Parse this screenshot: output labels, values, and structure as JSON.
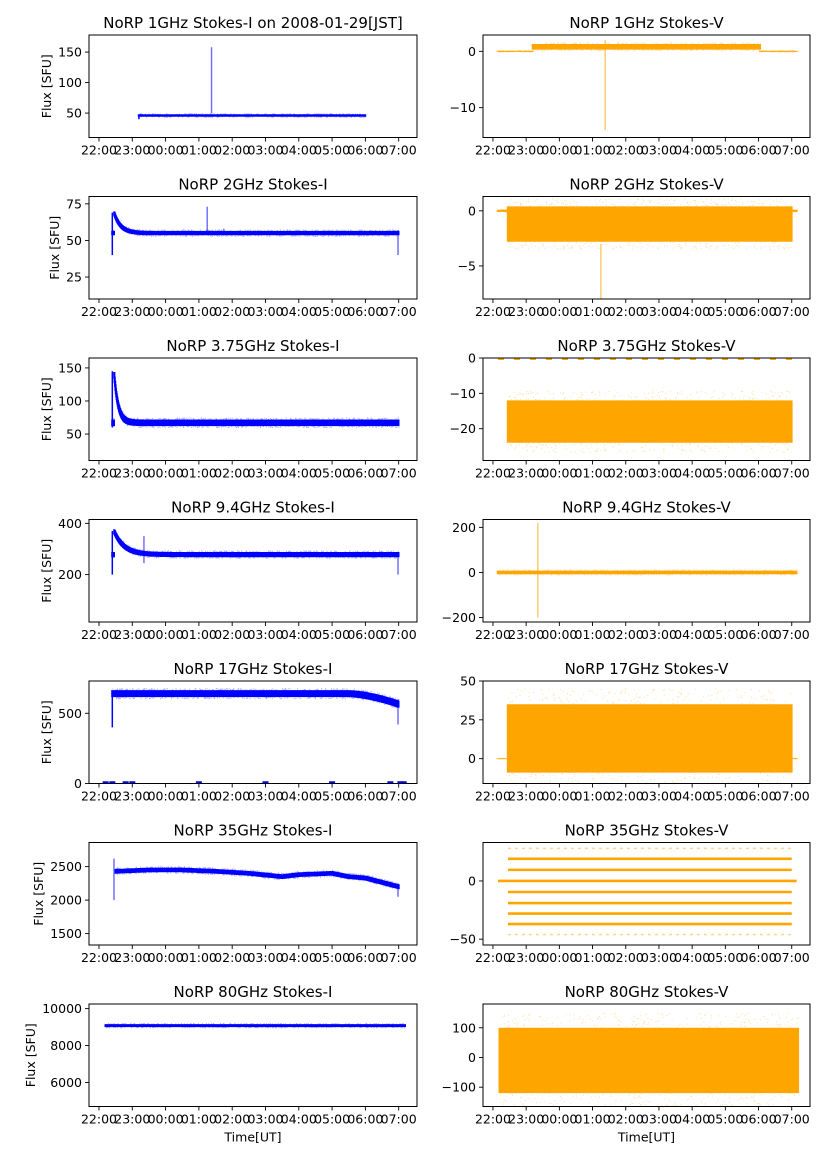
{
  "figure": {
    "x_tick_labels": [
      "22:00",
      "23:00",
      "00:00",
      "01:00",
      "02:00",
      "03:00",
      "04:00",
      "05:00",
      "06:00",
      "07:00"
    ],
    "x_range_hours": [
      21.7,
      31.55
    ],
    "xlabel": "Time[UT]",
    "ylabel": "Flux [SFU]",
    "colors": {
      "stokes_i": "#0000ff",
      "stokes_v": "#ffa500"
    }
  },
  "chart_data": [
    {
      "type": "scatter",
      "panel": "1GHz-I",
      "title": "NoRP 1GHz Stokes-I on 2008-01-29[JST]",
      "ylabel": "Flux [SFU]",
      "ylim": [
        10,
        178
      ],
      "yticks": [
        50,
        100,
        150
      ],
      "color": "#0000ff",
      "segments": [
        {
          "t0": 23.2,
          "t1": 30.0,
          "base": 46,
          "spread": 2
        }
      ],
      "spikes": [
        {
          "t": 25.38,
          "lo": 50,
          "hi": 158
        }
      ],
      "start_rise": {
        "t": 23.2,
        "from": 40,
        "to": 46
      }
    },
    {
      "type": "scatter",
      "panel": "1GHz-V",
      "title": "NoRP 1GHz Stokes-V",
      "ylabel": "",
      "ylim": [
        -15.3,
        2.9
      ],
      "yticks": [
        0,
        -10
      ],
      "color": "#ffa500",
      "segments": [
        {
          "t0": 22.15,
          "t1": 23.2,
          "base": 0,
          "spread": 0.1
        },
        {
          "t0": 23.2,
          "t1": 30.05,
          "base": 0.8,
          "spread": 0.5
        },
        {
          "t0": 30.05,
          "t1": 31.15,
          "base": 0,
          "spread": 0.1
        }
      ],
      "spikes": [
        {
          "t": 25.38,
          "lo": -14,
          "hi": 2
        }
      ]
    },
    {
      "type": "scatter",
      "panel": "2GHz-I",
      "title": "NoRP 2GHz Stokes-I",
      "ylabel": "Flux [SFU]",
      "ylim": [
        10,
        80
      ],
      "yticks": [
        25,
        50,
        75
      ],
      "color": "#0000ff",
      "segments": [
        {
          "t0": 22.4,
          "t1": 31.0,
          "base": 55,
          "spread": 1.5
        }
      ],
      "decay": {
        "t": 22.45,
        "peak": 69,
        "tau": 0.2
      },
      "spikes": [
        {
          "t": 25.25,
          "lo": 55,
          "hi": 73
        },
        {
          "t": 25.75,
          "lo": 55,
          "hi": 58
        },
        {
          "t": 30.98,
          "lo": 40,
          "hi": 57
        }
      ],
      "start_rise": {
        "t": 22.4,
        "from": 40,
        "to": 69
      }
    },
    {
      "type": "scatter",
      "panel": "2GHz-V",
      "title": "NoRP 2GHz Stokes-V",
      "ylabel": "",
      "ylim": [
        -8,
        1.3
      ],
      "yticks": [
        0,
        -5
      ],
      "color": "#ffa500",
      "segments": [
        {
          "t0": 22.15,
          "t1": 22.45,
          "base": 0,
          "spread": 0.1
        },
        {
          "t0": 22.45,
          "t1": 31.0,
          "base": -1.2,
          "spread": 1.6
        },
        {
          "t0": 31.0,
          "t1": 31.15,
          "base": 0,
          "spread": 0.1
        }
      ],
      "spikes": [
        {
          "t": 25.25,
          "lo": -8,
          "hi": -3
        }
      ]
    },
    {
      "type": "scatter",
      "panel": "3.75GHz-I",
      "title": "NoRP 3.75GHz Stokes-I",
      "ylabel": "Flux [SFU]",
      "ylim": [
        10,
        165
      ],
      "yticks": [
        50,
        100,
        150
      ],
      "color": "#0000ff",
      "segments": [
        {
          "t0": 22.4,
          "t1": 31.0,
          "base": 67,
          "spread": 5
        }
      ],
      "decay": {
        "t": 22.45,
        "peak": 145,
        "tau": 0.12
      },
      "start_rise": {
        "t": 22.4,
        "from": 60,
        "to": 145
      }
    },
    {
      "type": "scatter",
      "panel": "3.75GHz-V",
      "title": "NoRP 3.75GHz Stokes-V",
      "ylabel": "",
      "ylim": [
        -29,
        0
      ],
      "yticks": [
        0,
        -10,
        -20
      ],
      "color": "#ffa500",
      "segments": [
        {
          "t0": 22.45,
          "t1": 31.0,
          "base": -18,
          "spread": 6
        }
      ],
      "top_line": {
        "value": -0.3
      }
    },
    {
      "type": "scatter",
      "panel": "9.4GHz-I",
      "title": "NoRP 9.4GHz Stokes-I",
      "ylabel": "Flux [SFU]",
      "ylim": [
        15,
        415
      ],
      "yticks": [
        200,
        400
      ],
      "color": "#0000ff",
      "segments": [
        {
          "t0": 22.4,
          "t1": 31.0,
          "base": 278,
          "spread": 10
        }
      ],
      "decay": {
        "t": 22.45,
        "peak": 370,
        "tau": 0.3
      },
      "spikes": [
        {
          "t": 23.35,
          "lo": 245,
          "hi": 350
        },
        {
          "t": 30.98,
          "lo": 200,
          "hi": 285
        }
      ],
      "start_rise": {
        "t": 22.4,
        "from": 200,
        "to": 370
      }
    },
    {
      "type": "scatter",
      "panel": "9.4GHz-V",
      "title": "NoRP 9.4GHz Stokes-V",
      "ylabel": "",
      "ylim": [
        -220,
        235
      ],
      "yticks": [
        200,
        0,
        -200
      ],
      "color": "#ffa500",
      "segments": [
        {
          "t0": 22.15,
          "t1": 31.15,
          "base": 0,
          "spread": 8
        }
      ],
      "spikes": [
        {
          "t": 23.35,
          "lo": -200,
          "hi": 220
        }
      ]
    },
    {
      "type": "scatter",
      "panel": "17GHz-I",
      "title": "NoRP 17GHz Stokes-I",
      "ylabel": "Flux [SFU]",
      "ylim": [
        0,
        730
      ],
      "yticks": [
        0,
        500
      ],
      "color": "#0000ff",
      "segments": [
        {
          "t0": 22.4,
          "t1": 31.0,
          "base": 640,
          "spread": 25
        }
      ],
      "droop": {
        "t0": 29.5,
        "t1": 31.0,
        "drop": 75
      },
      "spikes": [
        {
          "t": 30.98,
          "lo": 420,
          "hi": 600
        }
      ],
      "start_rise": {
        "t": 22.4,
        "from": 400,
        "to": 640
      },
      "zero_marks": [
        22.2,
        22.4,
        22.8,
        23.0,
        25.0,
        27.0,
        29.0,
        30.75,
        31.05,
        31.15
      ]
    },
    {
      "type": "scatter",
      "panel": "17GHz-V",
      "title": "NoRP 17GHz Stokes-V",
      "ylabel": "",
      "ylim": [
        -16,
        50
      ],
      "yticks": [
        50,
        25,
        0
      ],
      "color": "#ffa500",
      "segments": [
        {
          "t0": 22.15,
          "t1": 22.45,
          "base": 0,
          "spread": 0.3
        },
        {
          "t0": 22.45,
          "t1": 31.0,
          "base": 13,
          "spread": 22
        },
        {
          "t0": 31.0,
          "t1": 31.15,
          "base": 0,
          "spread": 0.3
        }
      ]
    },
    {
      "type": "scatter",
      "panel": "35GHz-I",
      "title": "NoRP 35GHz Stokes-I",
      "ylabel": "Flux [SFU]",
      "ylim": [
        1330,
        2860
      ],
      "yticks": [
        1500,
        2000,
        2500
      ],
      "color": "#0000ff",
      "profile": [
        [
          22.5,
          2430
        ],
        [
          23.5,
          2450
        ],
        [
          24.5,
          2450
        ],
        [
          25.5,
          2430
        ],
        [
          26.5,
          2400
        ],
        [
          27.5,
          2350
        ],
        [
          28.0,
          2380
        ],
        [
          29.0,
          2400
        ],
        [
          29.5,
          2350
        ],
        [
          30.0,
          2330
        ],
        [
          31.0,
          2200
        ]
      ],
      "spread": 35,
      "spikes": [
        {
          "t": 22.45,
          "lo": 2000,
          "hi": 2620
        },
        {
          "t": 30.98,
          "lo": 2050,
          "hi": 2250
        }
      ]
    },
    {
      "type": "scatter",
      "panel": "35GHz-V",
      "title": "NoRP 35GHz Stokes-V",
      "ylabel": "",
      "ylim": [
        -55,
        33
      ],
      "yticks": [
        0,
        -50
      ],
      "color": "#ffa500",
      "levels": [
        28,
        19,
        9.5,
        0,
        -9.5,
        -19,
        -28,
        -37,
        -46
      ],
      "level_range": [
        22.45,
        31.0
      ],
      "zero_range": [
        22.15,
        31.15
      ]
    },
    {
      "type": "scatter",
      "panel": "80GHz-I",
      "title": "NoRP 80GHz Stokes-I",
      "ylabel": "Flux [SFU]",
      "ylim": [
        4700,
        10250
      ],
      "yticks": [
        6000,
        8000,
        10000
      ],
      "color": "#0000ff",
      "segments": [
        {
          "t0": 22.2,
          "t1": 31.2,
          "base": 9080,
          "spread": 80
        }
      ],
      "xlabel": "Time[UT]"
    },
    {
      "type": "scatter",
      "panel": "80GHz-V",
      "title": "NoRP 80GHz Stokes-V",
      "ylabel": "",
      "ylim": [
        -165,
        180
      ],
      "yticks": [
        100,
        0,
        -100
      ],
      "color": "#ffa500",
      "segments": [
        {
          "t0": 22.2,
          "t1": 31.2,
          "base": -10,
          "spread": 110
        }
      ],
      "xlabel": "Time[UT]"
    }
  ]
}
